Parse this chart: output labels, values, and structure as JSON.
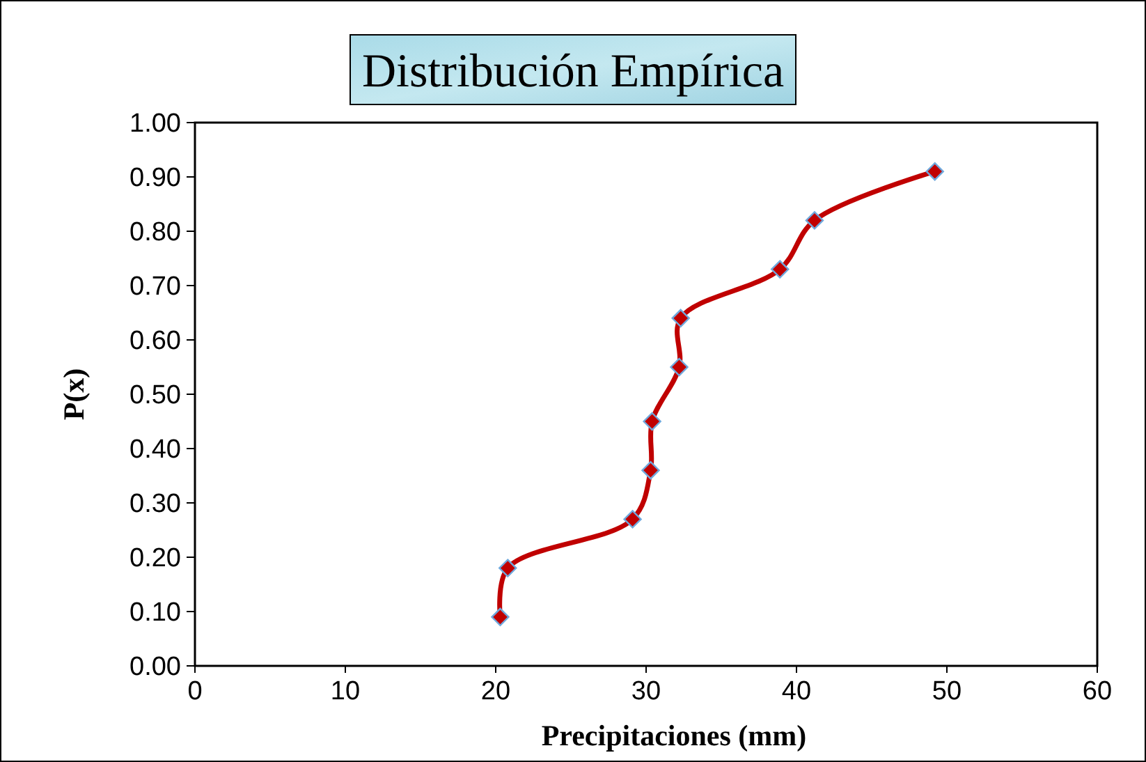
{
  "chart_data": {
    "type": "line",
    "title": "Distribución Empírica",
    "xlabel": "Precipitaciones (mm)",
    "ylabel": "P(x)",
    "xlim": [
      0,
      60
    ],
    "xticks": [
      0,
      10,
      20,
      30,
      40,
      50,
      60
    ],
    "ylim": [
      0,
      1
    ],
    "yticks": [
      {
        "value": 0,
        "label": "0.00"
      },
      {
        "value": 0.1,
        "label": "0.10"
      },
      {
        "value": 0.2,
        "label": "0.20"
      },
      {
        "value": 0.3,
        "label": "0.30"
      },
      {
        "value": 0.4,
        "label": "0.40"
      },
      {
        "value": 0.5,
        "label": "0.50"
      },
      {
        "value": 0.6,
        "label": "0.60"
      },
      {
        "value": 0.7,
        "label": "0.70"
      },
      {
        "value": 0.8,
        "label": "0.80"
      },
      {
        "value": 0.9,
        "label": "0.90"
      },
      {
        "value": 1,
        "label": "1.00"
      }
    ],
    "x": [
      20.3,
      20.8,
      29.1,
      30.3,
      30.4,
      32.2,
      32.3,
      38.9,
      41.2,
      49.2
    ],
    "series": [
      {
        "color": "#c00000",
        "values": [
          0.09,
          0.18,
          0.27,
          0.36,
          0.45,
          0.55,
          0.64,
          0.73,
          0.82,
          0.91
        ]
      }
    ],
    "marker": "diamond",
    "line_style": "solid",
    "grid": false
  }
}
